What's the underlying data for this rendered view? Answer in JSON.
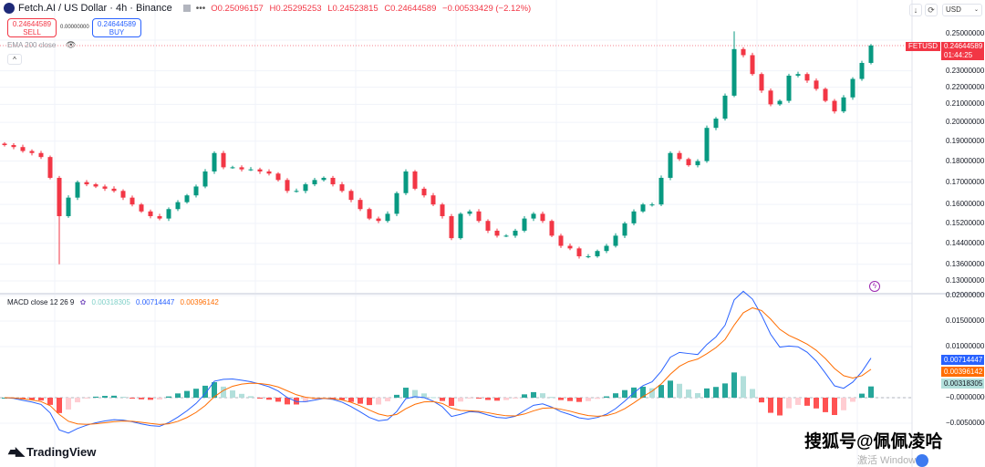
{
  "header": {
    "symbol_title": "Fetch.AI / US Dollar · 4h · Binance",
    "open": "O0.25096157",
    "high": "H0.25295253",
    "low": "L0.24523815",
    "close": "C0.24644589",
    "change": "−0.00533429 (−2.12%)"
  },
  "trade": {
    "sell_price": "0.24644589",
    "sell_label": "SELL",
    "spread": "0.00000000",
    "buy_price": "0.24644589",
    "buy_label": "BUY"
  },
  "indicators": {
    "ema_label": "EMA 200 close",
    "macd_label": "MACD close 12 26 9",
    "macd_hist": "0.00318305",
    "macd_line": "0.00714447",
    "macd_signal": "0.00396142"
  },
  "toolbar": {
    "currency": "USD",
    "currency_chevron": "⌄",
    "download_icon": "↓",
    "refresh_icon": "⟳",
    "collapse_icon": "^"
  },
  "price_axis": {
    "labels": [
      "0.25000000",
      "0.23000000",
      "0.22000000",
      "0.21000000",
      "0.20000000",
      "0.19000000",
      "0.18000000",
      "0.17000000",
      "0.16000000",
      "0.15200000",
      "0.14400000",
      "0.13600000",
      "0.13000000"
    ],
    "price_tag_symbol": "FETUSD",
    "price_tag_value": "0.24644589",
    "price_tag_countdown": "01:44:25"
  },
  "macd_axis": {
    "labels": [
      "0.02000000",
      "0.01500000",
      "0.01000000",
      "−0.00000000",
      "−0.00500000"
    ]
  },
  "branding": {
    "logo": "TradingView",
    "watermark": "搜狐号@佩佩凌哈",
    "os_watermark": "激活 Windows"
  },
  "colors": {
    "up": "#089981",
    "down": "#f23645",
    "macd": "#2962ff",
    "signal": "#ff6d00",
    "hist_up_strong": "#26a69a",
    "hist_up_weak": "#b2dfdb",
    "hist_down_strong": "#ff5252",
    "hist_down_weak": "#ffcdd2"
  },
  "chart_data": {
    "type": "candlestick",
    "scale": "log",
    "ylim": [
      0.128,
      0.26
    ],
    "closes": [
      0.188,
      0.187,
      0.185,
      0.184,
      0.182,
      0.172,
      0.155,
      0.163,
      0.17,
      0.169,
      0.168,
      0.167,
      0.166,
      0.163,
      0.16,
      0.157,
      0.155,
      0.154,
      0.158,
      0.161,
      0.164,
      0.168,
      0.175,
      0.184,
      0.177,
      0.177,
      0.176,
      0.176,
      0.175,
      0.174,
      0.171,
      0.166,
      0.166,
      0.169,
      0.171,
      0.172,
      0.169,
      0.166,
      0.162,
      0.158,
      0.154,
      0.153,
      0.156,
      0.165,
      0.175,
      0.167,
      0.164,
      0.16,
      0.155,
      0.146,
      0.156,
      0.157,
      0.153,
      0.149,
      0.147,
      0.147,
      0.149,
      0.154,
      0.156,
      0.153,
      0.147,
      0.143,
      0.142,
      0.139,
      0.139,
      0.141,
      0.143,
      0.147,
      0.152,
      0.157,
      0.16,
      0.16,
      0.172,
      0.184,
      0.181,
      0.178,
      0.18,
      0.197,
      0.202,
      0.215,
      0.244,
      0.24,
      0.228,
      0.218,
      0.21,
      0.212,
      0.227,
      0.228,
      0.224,
      0.219,
      0.212,
      0.206,
      0.214,
      0.225,
      0.235,
      0.2464
    ],
    "lowest_wick": 0.136,
    "macd": {
      "fast": 12,
      "slow": 26,
      "signal": 9,
      "ylim": [
        -0.0075,
        0.021
      ]
    }
  }
}
